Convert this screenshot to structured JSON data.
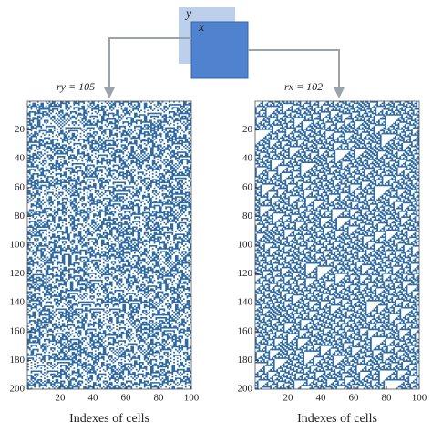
{
  "diagram": {
    "back_label": "y",
    "front_label": "x"
  },
  "panels": [
    {
      "label": "ry = 105",
      "rule": 105,
      "xlabel": "Indexes of cells",
      "xlim": [
        0,
        100
      ],
      "ylim": [
        0,
        200
      ],
      "xticks": [
        20,
        40,
        60,
        80,
        100
      ],
      "yticks": [
        20,
        40,
        60,
        80,
        100,
        120,
        140,
        160,
        180,
        200
      ],
      "color": "#2f6aa3"
    },
    {
      "label": "rx = 102",
      "rule": 102,
      "xlabel": "Indexes of cells",
      "xlim": [
        0,
        100
      ],
      "ylim": [
        0,
        200
      ],
      "xticks": [
        20,
        40,
        60,
        80,
        100
      ],
      "yticks": [
        20,
        40,
        60,
        80,
        100,
        120,
        140,
        160,
        180,
        200
      ],
      "color": "#2f6aa3"
    }
  ]
}
